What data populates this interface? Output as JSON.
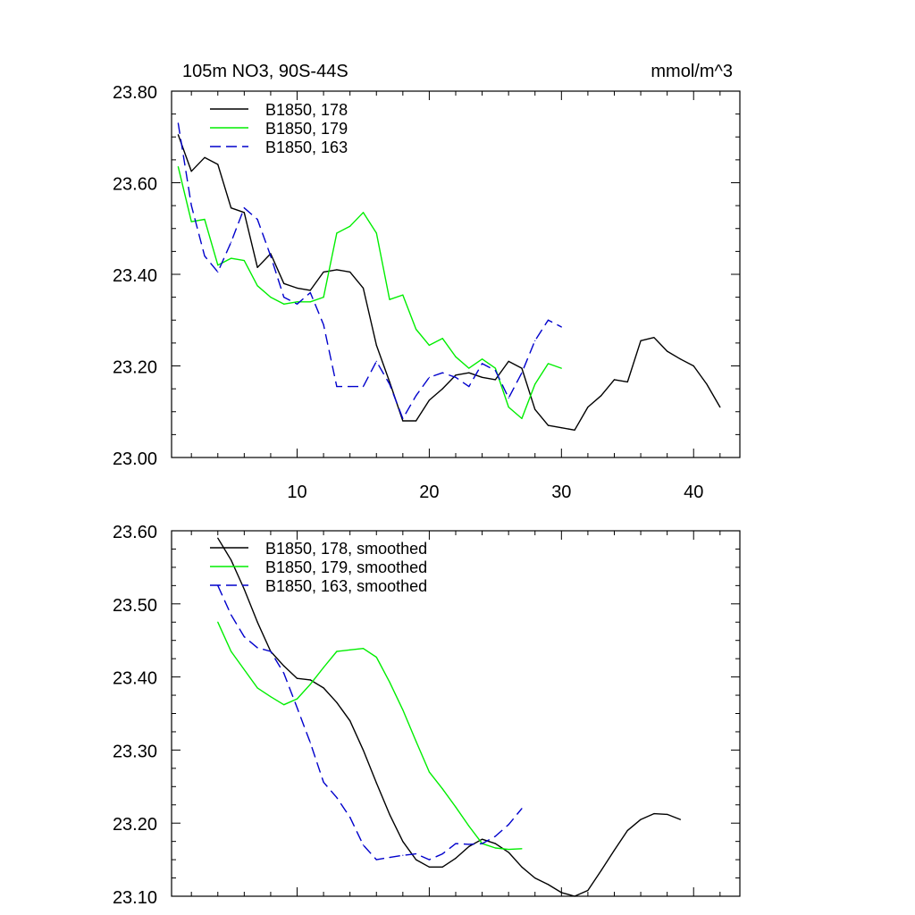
{
  "chart_data": [
    {
      "type": "line",
      "title_left": "105m NO3, 90S-44S",
      "title_right": "mmol/m^3",
      "xlabel": "",
      "ylabel": "",
      "xlim": [
        0.5,
        43.5
      ],
      "ylim": [
        23.0,
        23.8
      ],
      "x_ticks": [
        10,
        20,
        30,
        40
      ],
      "x_tick_labels": [
        "10",
        "20",
        "30",
        "40"
      ],
      "y_ticks": [
        23.0,
        23.2,
        23.4,
        23.6,
        23.8
      ],
      "y_tick_labels": [
        "23.00",
        "23.20",
        "23.40",
        "23.60",
        "23.80"
      ],
      "legend_position": "top-left",
      "series": [
        {
          "name": "B1850, 178",
          "color": "#000000",
          "dash": "solid",
          "x": [
            1,
            2,
            3,
            4,
            5,
            6,
            7,
            8,
            9,
            10,
            11,
            12,
            13,
            14,
            15,
            16,
            17,
            18,
            19,
            20,
            21,
            22,
            23,
            24,
            25,
            26,
            27,
            28,
            29,
            30,
            31,
            32,
            33,
            34,
            35,
            36,
            37,
            38,
            39,
            40,
            41,
            42
          ],
          "values": [
            23.705,
            23.625,
            23.655,
            23.64,
            23.545,
            23.535,
            23.415,
            23.445,
            23.38,
            23.37,
            23.365,
            23.405,
            23.41,
            23.405,
            23.37,
            23.245,
            23.165,
            23.08,
            23.08,
            23.125,
            23.15,
            23.18,
            23.185,
            23.175,
            23.17,
            23.21,
            23.195,
            23.105,
            23.07,
            23.065,
            23.06,
            23.11,
            23.135,
            23.17,
            23.165,
            23.255,
            23.262,
            23.232,
            23.215,
            23.2,
            23.16,
            23.11
          ]
        },
        {
          "name": "B1850, 179",
          "color": "#00ee00",
          "dash": "solid",
          "x": [
            1,
            2,
            3,
            4,
            5,
            6,
            7,
            8,
            9,
            10,
            11,
            12,
            13,
            14,
            15,
            16,
            17,
            18,
            19,
            20,
            21,
            22,
            23,
            24,
            25,
            26,
            27,
            28,
            29,
            30
          ],
          "values": [
            23.635,
            23.515,
            23.52,
            23.42,
            23.435,
            23.43,
            23.375,
            23.35,
            23.335,
            23.34,
            23.34,
            23.35,
            23.49,
            23.505,
            23.535,
            23.49,
            23.345,
            23.355,
            23.28,
            23.245,
            23.26,
            23.22,
            23.195,
            23.215,
            23.195,
            23.11,
            23.085,
            23.16,
            23.205,
            23.195
          ]
        },
        {
          "name": "B1850, 163",
          "color": "#0000cc",
          "dash": "dashed",
          "x": [
            1,
            2,
            3,
            4,
            5,
            6,
            7,
            8,
            9,
            10,
            11,
            12,
            13,
            14,
            15,
            16,
            17,
            18,
            19,
            20,
            21,
            22,
            23,
            24,
            25,
            26,
            27,
            28,
            29,
            30
          ],
          "values": [
            23.73,
            23.55,
            23.44,
            23.405,
            23.47,
            23.545,
            23.52,
            23.44,
            23.35,
            23.335,
            23.36,
            23.29,
            23.155,
            23.155,
            23.155,
            23.21,
            23.16,
            23.085,
            23.135,
            23.175,
            23.185,
            23.175,
            23.155,
            23.205,
            23.19,
            23.13,
            23.185,
            23.255,
            23.3,
            23.285
          ]
        }
      ]
    },
    {
      "type": "line",
      "title_left": "",
      "title_right": "",
      "xlabel": "",
      "ylabel": "",
      "xlim": [
        0.5,
        43.5
      ],
      "ylim": [
        23.1,
        23.6
      ],
      "x_ticks": [
        10,
        20,
        30,
        40
      ],
      "x_tick_labels": [],
      "y_ticks": [
        23.1,
        23.2,
        23.3,
        23.4,
        23.5,
        23.6
      ],
      "y_tick_labels": [
        "23.10",
        "23.20",
        "23.30",
        "23.40",
        "23.50",
        "23.60"
      ],
      "legend_position": "top-left",
      "series": [
        {
          "name": "B1850, 178, smoothed",
          "color": "#000000",
          "dash": "solid",
          "x": [
            4,
            5,
            6,
            7,
            8,
            9,
            10,
            11,
            12,
            13,
            14,
            15,
            16,
            17,
            18,
            19,
            20,
            21,
            22,
            23,
            24,
            25,
            26,
            27,
            28,
            29,
            30,
            31,
            32,
            33,
            34,
            35,
            36,
            37,
            38,
            39
          ],
          "values": [
            23.59,
            23.56,
            23.52,
            23.475,
            23.435,
            23.415,
            23.398,
            23.396,
            23.385,
            23.365,
            23.34,
            23.3,
            23.255,
            23.212,
            23.175,
            23.15,
            23.14,
            23.14,
            23.152,
            23.168,
            23.178,
            23.172,
            23.16,
            23.14,
            23.125,
            23.116,
            23.105,
            23.1,
            23.108,
            23.135,
            23.163,
            23.19,
            23.205,
            23.213,
            23.212,
            23.205
          ]
        },
        {
          "name": "B1850, 179, smoothed",
          "color": "#00ee00",
          "dash": "solid",
          "x": [
            4,
            5,
            6,
            7,
            8,
            9,
            10,
            11,
            12,
            13,
            14,
            15,
            16,
            17,
            18,
            19,
            20,
            21,
            22,
            23,
            24,
            25,
            26,
            27
          ],
          "values": [
            23.475,
            23.435,
            23.41,
            23.385,
            23.373,
            23.362,
            23.37,
            23.39,
            23.413,
            23.435,
            23.437,
            23.439,
            23.427,
            23.393,
            23.355,
            23.312,
            23.27,
            23.247,
            23.222,
            23.196,
            23.172,
            23.166,
            23.164,
            23.165
          ]
        },
        {
          "name": "B1850, 163, smoothed",
          "color": "#0000cc",
          "dash": "dashed",
          "x": [
            4,
            5,
            6,
            7,
            8,
            9,
            10,
            11,
            12,
            13,
            14,
            15,
            16,
            17,
            18,
            19,
            20,
            21,
            22,
            23,
            24,
            25,
            26,
            27
          ],
          "values": [
            23.525,
            23.485,
            23.455,
            23.44,
            23.435,
            23.405,
            23.358,
            23.31,
            23.256,
            23.235,
            23.208,
            23.17,
            23.15,
            23.153,
            23.156,
            23.158,
            23.15,
            23.158,
            23.172,
            23.171,
            23.172,
            23.182,
            23.198,
            23.22
          ]
        }
      ]
    }
  ]
}
